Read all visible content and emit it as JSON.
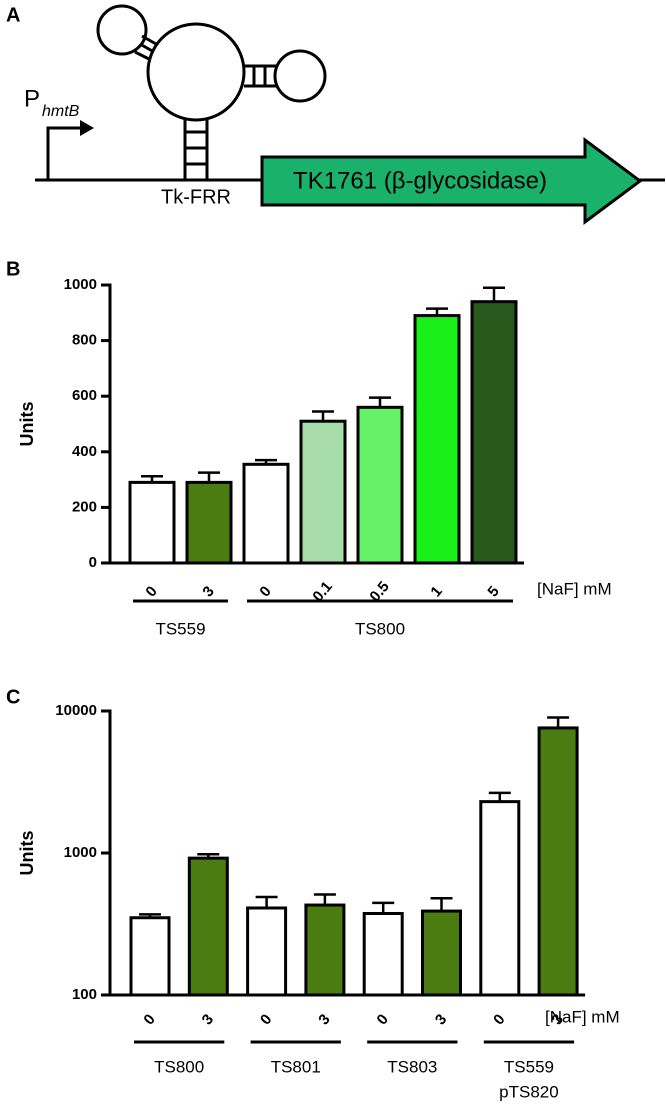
{
  "diagram": {
    "label": "A",
    "promoter": "P",
    "promoter_sub": "hmtB",
    "element": "Tk-FRR",
    "gene": "TK1761 (β-glycosidase)"
  },
  "chart_data": [
    {
      "type": "bar",
      "panel": "B",
      "ylabel": "Units",
      "xlabel": "[NaF] mM",
      "ylim": [
        0,
        1000
      ],
      "yticks": [
        0,
        200,
        400,
        600,
        800,
        1000
      ],
      "log_scale": false,
      "groups": [
        {
          "name": "TS559",
          "categories": [
            "0",
            "3"
          ],
          "values": [
            290,
            290
          ],
          "errors": [
            22,
            35
          ],
          "colors": [
            "#ffffff",
            "#4a7c12"
          ]
        },
        {
          "name": "TS800",
          "categories": [
            "0",
            "0.1",
            "0.5",
            "1",
            "5"
          ],
          "values": [
            355,
            510,
            560,
            890,
            940
          ],
          "errors": [
            15,
            35,
            35,
            25,
            50
          ],
          "colors": [
            "#ffffff",
            "#a8dcaa",
            "#66f266",
            "#19f019",
            "#285a1e"
          ]
        }
      ]
    },
    {
      "type": "bar",
      "panel": "C",
      "ylabel": "Units",
      "xlabel": "[NaF] mM",
      "ylim": [
        100,
        10000
      ],
      "yticks": [
        100,
        1000,
        10000
      ],
      "log_scale": true,
      "groups": [
        {
          "name": "TS800",
          "categories": [
            "0",
            "3"
          ],
          "values": [
            350,
            920
          ],
          "errors": [
            20,
            60
          ],
          "colors": [
            "#ffffff",
            "#4a7c12"
          ]
        },
        {
          "name": "TS801",
          "categories": [
            "0",
            "3"
          ],
          "values": [
            410,
            430
          ],
          "errors": [
            80,
            80
          ],
          "colors": [
            "#ffffff",
            "#4a7c12"
          ]
        },
        {
          "name": "TS803",
          "categories": [
            "0",
            "3"
          ],
          "values": [
            375,
            390
          ],
          "errors": [
            70,
            90
          ],
          "colors": [
            "#ffffff",
            "#4a7c12"
          ]
        },
        {
          "name": [
            "TS559",
            "pTS820"
          ],
          "categories": [
            "0",
            "3"
          ],
          "values": [
            2300,
            7600
          ],
          "errors": [
            350,
            1400
          ],
          "colors": [
            "#ffffff",
            "#4a7c12"
          ]
        }
      ]
    }
  ]
}
